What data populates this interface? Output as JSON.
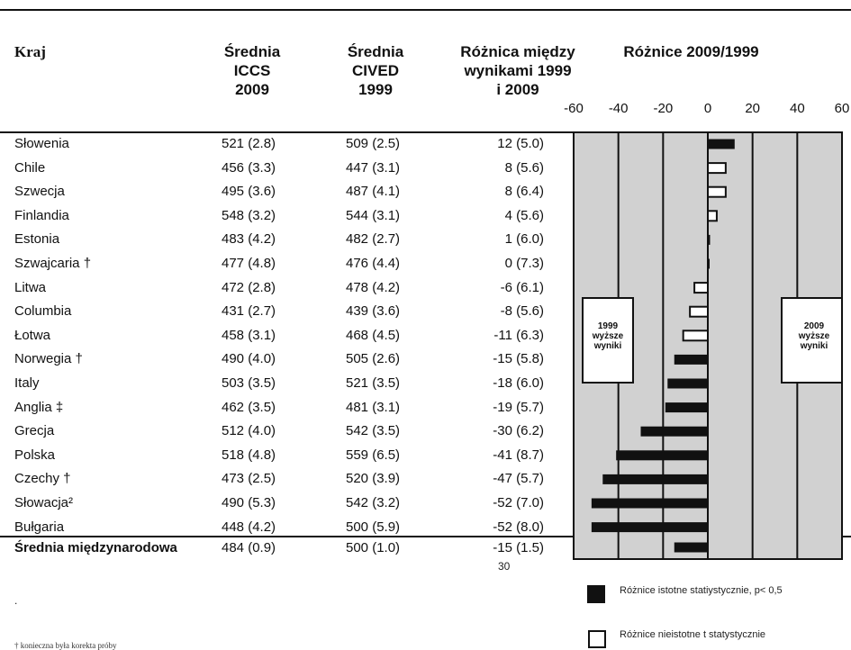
{
  "headers": {
    "country": "Kraj",
    "iccs": [
      "Średnia",
      "ICCS",
      "2009"
    ],
    "cived": [
      "Średnia",
      "CIVED",
      "1999"
    ],
    "diff": [
      "Różnica między",
      "wynikami 1999",
      "i 2009"
    ],
    "chart": "Różnice 2009/1999"
  },
  "chart_data": {
    "type": "bar",
    "orientation": "horizontal",
    "title": "Różnice 2009/1999",
    "xlim": [
      -60,
      60
    ],
    "ticks": [
      "-60",
      "-40",
      "-20",
      "0",
      "20",
      "40",
      "60"
    ],
    "categories": [
      "Słowenia",
      "Chile",
      "Szwecja",
      "Finlandia",
      "Estonia",
      "Szwajcaria †",
      "Litwa",
      "Columbia",
      "Łotwa",
      "Norwegia †",
      "Italy",
      "Anglia ‡",
      "Grecja",
      "Polska",
      "Czechy †",
      "Słowacja²",
      "Bułgaria",
      "Średnia międzynarodowa"
    ],
    "values": [
      12,
      8,
      8,
      4,
      1,
      0,
      -6,
      -8,
      -11,
      -15,
      -18,
      -19,
      -30,
      -41,
      -47,
      -52,
      -52,
      -15
    ],
    "significant": [
      true,
      false,
      false,
      false,
      true,
      true,
      false,
      false,
      false,
      true,
      true,
      true,
      true,
      true,
      true,
      true,
      true,
      true
    ],
    "grid": true,
    "annotations": [
      {
        "label": [
          "1999",
          "wyższe",
          "wyniki"
        ],
        "side": "left"
      },
      {
        "label": [
          "2009",
          "wyższe",
          "wyniki"
        ],
        "side": "right"
      }
    ]
  },
  "rows": [
    {
      "name": "Słowenia",
      "iccs": "521  (2.8)",
      "cived": "509  (2.5)",
      "diff": "12  (5.0)"
    },
    {
      "name": "Chile",
      "iccs": "456  (3.3)",
      "cived": "447  (3.1)",
      "diff": "8  (5.6)"
    },
    {
      "name": "Szwecja",
      "iccs": "495  (3.6)",
      "cived": "487  (4.1)",
      "diff": "8  (6.4)"
    },
    {
      "name": "Finlandia",
      "iccs": "548  (3.2)",
      "cived": "544  (3.1)",
      "diff": "4  (5.6)"
    },
    {
      "name": "Estonia",
      "iccs": "483  (4.2)",
      "cived": "482  (2.7)",
      "diff": "1  (6.0)"
    },
    {
      "name": "Szwajcaria †",
      "iccs": "477  (4.8)",
      "cived": "476  (4.4)",
      "diff": "0  (7.3)"
    },
    {
      "name": "Litwa",
      "iccs": "472  (2.8)",
      "cived": "478  (4.2)",
      "diff": "-6  (6.1)"
    },
    {
      "name": "Columbia",
      "iccs": "431  (2.7)",
      "cived": "439  (3.6)",
      "diff": "-8  (5.6)"
    },
    {
      "name": "Łotwa",
      "iccs": "458  (3.1)",
      "cived": "468  (4.5)",
      "diff": "-11  (6.3)"
    },
    {
      "name": "Norwegia †",
      "iccs": "490  (4.0)",
      "cived": "505  (2.6)",
      "diff": "-15  (5.8)"
    },
    {
      "name": "Italy",
      "iccs": "503  (3.5)",
      "cived": "521  (3.5)",
      "diff": "-18  (6.0)"
    },
    {
      "name": "Anglia ‡",
      "iccs": "462  (3.5)",
      "cived": "481  (3.1)",
      "diff": "-19  (5.7)"
    },
    {
      "name": "Grecja",
      "iccs": "512  (4.0)",
      "cived": "542  (3.5)",
      "diff": "-30  (6.2)"
    },
    {
      "name": "Polska",
      "iccs": "518  (4.8)",
      "cived": "559  (6.5)",
      "diff": "-41  (8.7)"
    },
    {
      "name": "Czechy †",
      "iccs": "473  (2.5)",
      "cived": "520  (3.9)",
      "diff": "-47  (5.7)"
    },
    {
      "name": "Słowacja²",
      "iccs": "490  (5.3)",
      "cived": "542  (3.2)",
      "diff": "-52  (7.0)"
    },
    {
      "name": "Bułgaria",
      "iccs": "448  (4.2)",
      "cived": "500  (5.9)",
      "diff": "-52  (8.0)"
    }
  ],
  "average": {
    "name": "Średnia międzynarodowa",
    "iccs": "484  (0.9)",
    "cived": "500  (1.0)",
    "diff": "-15  (1.5)"
  },
  "page_number": "30",
  "dot": ".",
  "legend": {
    "significant": "Różnice istotne statiystycznie, p< 0,5",
    "not_significant": "Różnice nieistotne t statystycznie"
  },
  "footnote": "† konieczna była korekta próby",
  "colors": {
    "bar": "#111111",
    "panel": "#d1d1d1",
    "hollow": "#ffffff"
  }
}
